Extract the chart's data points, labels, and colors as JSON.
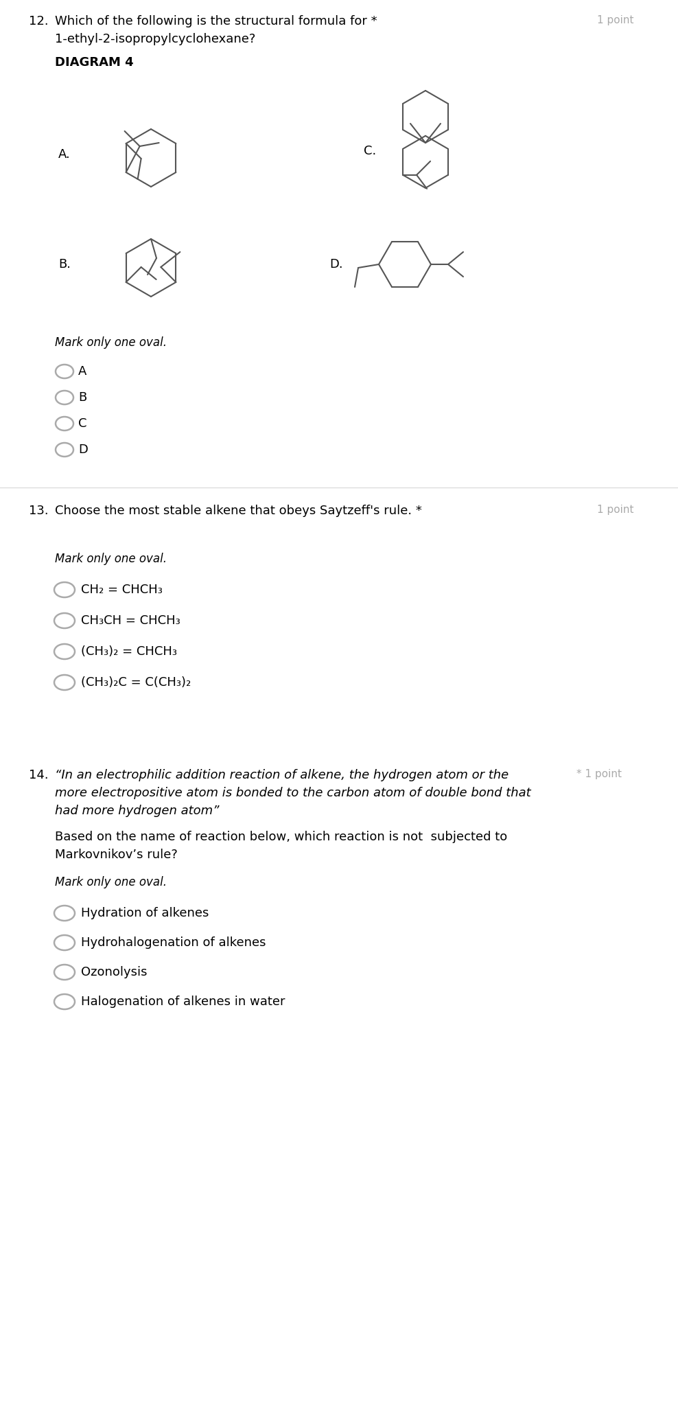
{
  "bg_color": "#ffffff",
  "q12_number": "12.",
  "q12_text_line1": "Which of the following is the structural formula for *",
  "q12_text_line2": "1-ethyl-2-isopropylcyclohexane?",
  "q12_points": "1 point",
  "diagram_label": "DIAGRAM 4",
  "q12_mark_text": "Mark only one oval.",
  "q12_options": [
    "A",
    "B",
    "C",
    "D"
  ],
  "q13_number": "13.",
  "q13_text": "Choose the most stable alkene that obeys Saytzeff's rule. *",
  "q13_points": "1 point",
  "q13_mark_text": "Mark only one oval.",
  "q13_options": [
    "CH₂ = CHCH₃",
    "CH₃CH = CHCH₃",
    "(CH₃)₂ = CHCH₃",
    "(CH₃)₂C = C(CH₃)₂"
  ],
  "q14_number": "14.",
  "q14_quote": "“In an electrophilic addition reaction of alkene, the hydrogen atom or the",
  "q14_quote2": "more electropositive atom is bonded to the carbon atom of double bond that",
  "q14_quote3": "had more hydrogen atom”",
  "q14_points": "* 1 point",
  "q14_subtext1": "Based on the name of reaction below, which reaction is not  subjected to",
  "q14_subtext2": "Markovnikov’s rule?",
  "q14_mark_text": "Mark only one oval.",
  "q14_options": [
    "Hydration of alkenes",
    "Hydrohalogenation of alkenes",
    "Ozonolysis",
    "Halogenation of alkenes in water"
  ],
  "text_color": "#000000",
  "mol_color": "#555555",
  "light_gray": "#aaaaaa"
}
